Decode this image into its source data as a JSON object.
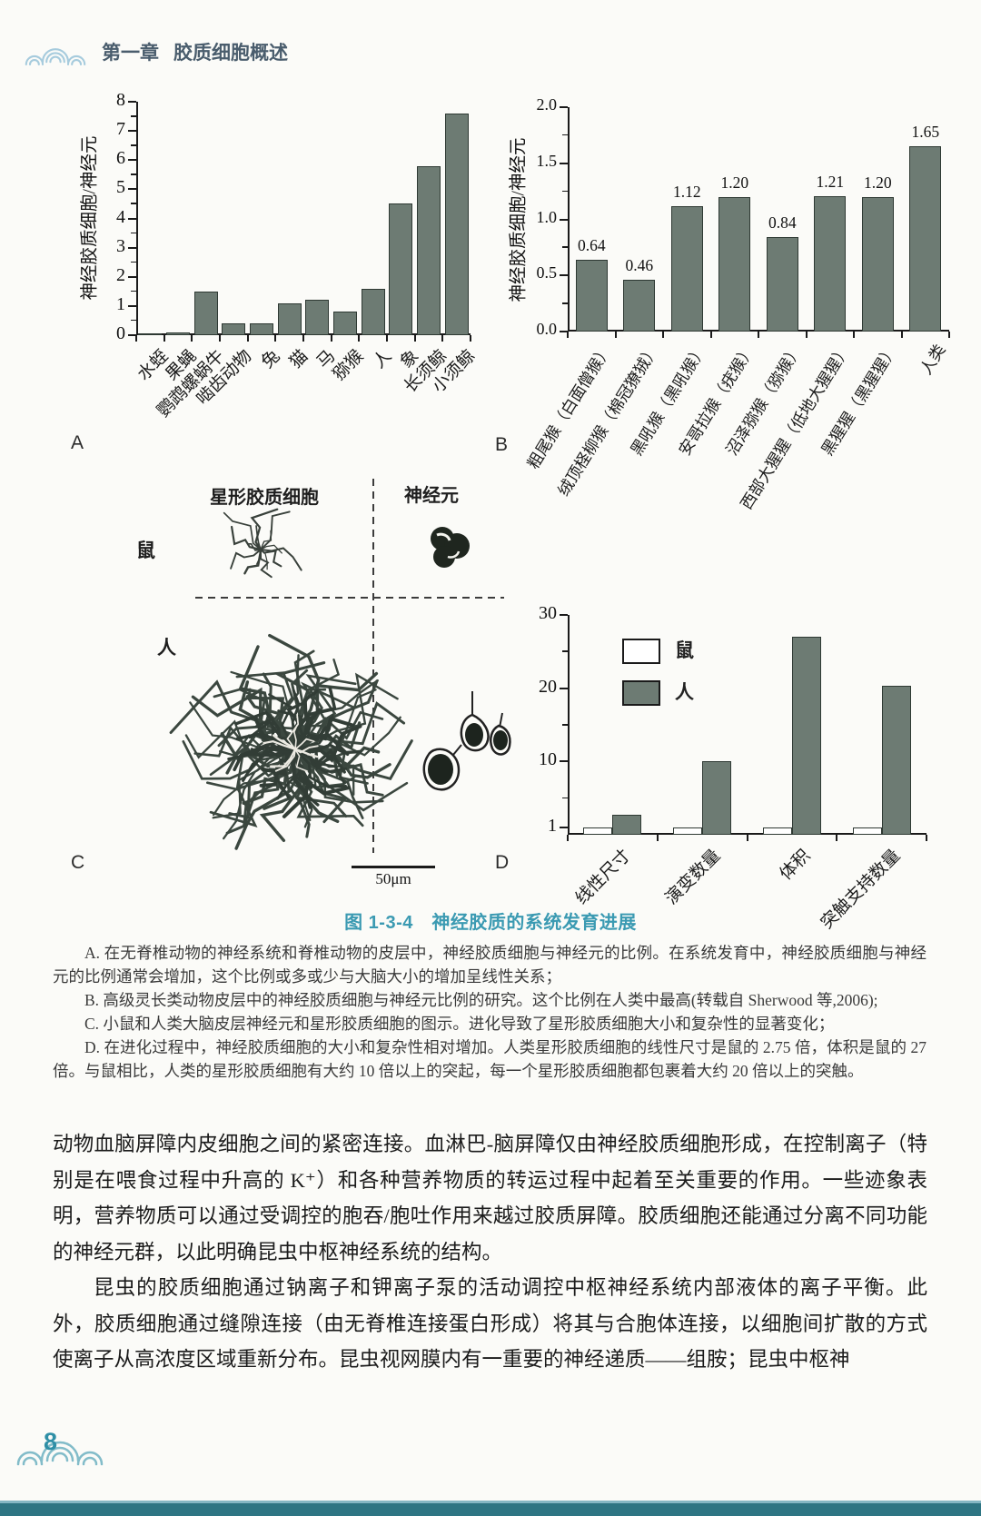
{
  "header": {
    "chapter": "第一章",
    "title": "胶质细胞概述"
  },
  "figure": {
    "panel_labels": {
      "a": "A",
      "b": "B",
      "c": "C",
      "d": "D"
    },
    "title": "图 1-3-4　神经胶质的系统发育进展",
    "panel_c": {
      "col_astrocyte": "星形胶质细胞",
      "col_neuron": "神经元",
      "row_mouse": "鼠",
      "row_human": "人",
      "scale_bar": "50μm"
    },
    "notes": [
      "A. 在无脊椎动物的神经系统和脊椎动物的皮层中，神经胶质细胞与神经元的比例。在系统发育中，神经胶质细胞与神经元的比例通常会增加，这个比例或多或少与大脑大小的增加呈线性关系；",
      "B. 高级灵长类动物皮层中的神经胶质细胞与神经元比例的研究。这个比例在人类中最高(转载自 Sherwood 等,2006);",
      "C. 小鼠和人类大脑皮层神经元和星形胶质细胞的图示。进化导致了星形胶质细胞大小和复杂性的显著变化；",
      "D. 在进化过程中，神经胶质细胞的大小和复杂性相对增加。人类星形胶质细胞的线性尺寸是鼠的 2.75 倍，体积是鼠的 27 倍。与鼠相比，人类的星形胶质细胞有大约 10 倍以上的突起，每一个星形胶质细胞都包裹着大约 20 倍以上的突触。"
    ]
  },
  "chart_data": [
    {
      "id": "A",
      "type": "bar",
      "title": "",
      "ylabel": "神经胶质细胞/神经元",
      "xlabel": "",
      "ylim": [
        0,
        8
      ],
      "yticks": [
        0,
        1,
        2,
        3,
        4,
        5,
        6,
        7,
        8
      ],
      "grid": false,
      "categories": [
        "水蛭",
        "果蝇",
        "鹦鹉螺蜗牛",
        "啮齿动物",
        "兔",
        "猫",
        "马",
        "猕猴",
        "人",
        "象",
        "长须鲸",
        "小须鲸"
      ],
      "values": [
        0.05,
        0.1,
        1.5,
        0.4,
        0.4,
        1.1,
        1.2,
        0.8,
        1.6,
        4.5,
        5.8,
        7.6
      ]
    },
    {
      "id": "B",
      "type": "bar",
      "title": "",
      "ylabel": "神经胶质细胞/神经元",
      "xlabel": "",
      "ylim": [
        0,
        2.0
      ],
      "yticks": [
        "0.0",
        "0.5",
        "1.0",
        "1.5",
        "2.0"
      ],
      "grid": false,
      "categories": [
        "粗尾猴（白面僧猴）",
        "绒顶柽柳猴（棉冠獠狨）",
        "黑吼猴（黑吼猴）",
        "安哥拉猴（疣猴）",
        "沼泽猕猴（猕猴）",
        "西部大猩猩（低地大猩猩）",
        "黑猩猩（黑猩猩）",
        "人类"
      ],
      "values": [
        0.64,
        0.46,
        1.12,
        1.2,
        0.84,
        1.21,
        1.2,
        1.65
      ],
      "value_labels": [
        "0.64",
        "0.46",
        "1.12",
        "1.20",
        "0.84",
        "1.21",
        "1.20",
        "1.65"
      ]
    },
    {
      "id": "D",
      "type": "bar",
      "title": "",
      "ylabel": "",
      "xlabel": "",
      "ylim": [
        0,
        30
      ],
      "yticks": [
        1,
        10,
        20,
        30
      ],
      "grid": false,
      "legend_position": "upper-left",
      "categories": [
        "线性尺寸",
        "演变数量",
        "体积",
        "突触支持数量"
      ],
      "series": [
        {
          "name": "鼠",
          "values": [
            1,
            1,
            1,
            1
          ],
          "fill": "#ffffff"
        },
        {
          "name": "人",
          "values": [
            2.75,
            10,
            27,
            20.3
          ],
          "fill": "#6d7b73"
        }
      ]
    }
  ],
  "body_paragraphs": [
    "动物血脑屏障内皮细胞之间的紧密连接。血淋巴-脑屏障仅由神经胶质细胞形成，在控制离子（特别是在喂食过程中升高的 K⁺）和各种营养物质的转运过程中起着至关重要的作用。一些迹象表明，营养物质可以通过受调控的胞吞/胞吐作用来越过胶质屏障。胶质细胞还能通过分离不同功能的神经元群，以此明确昆虫中枢神经系统的结构。",
    "昆虫的胶质细胞通过钠离子和钾离子泵的活动调控中枢神经系统内部液体的离子平衡。此外，胶质细胞通过缝隙连接（由无脊椎连接蛋白形成）将其与合胞体连接，以细胞间扩散的方式使离子从高浓度区域重新分布。昆虫视网膜内有一重要的神经递质——组胺；昆虫中枢神"
  ],
  "footer": {
    "page_number": "8"
  },
  "colors": {
    "bar_fill": "#6d7b73",
    "bar_stroke": "#2e3933",
    "figure_title": "#3b9ab2",
    "header_text": "#4a5d6d",
    "page_teal": "#2f8fa6",
    "bottom_strip": "#2e7583",
    "logo_blue": "#a6cbdd"
  }
}
